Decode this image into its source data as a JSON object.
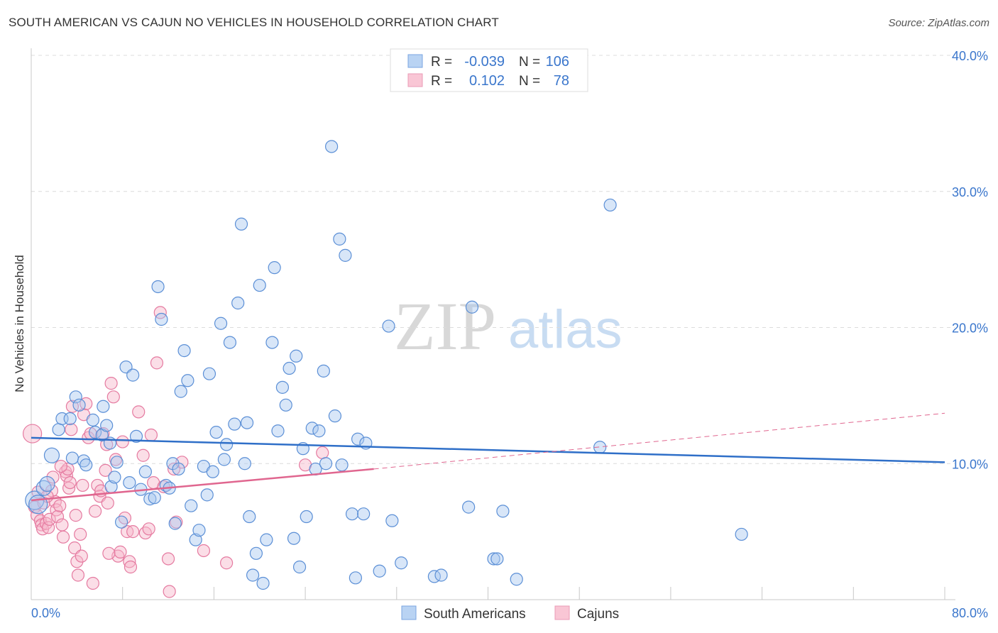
{
  "title": "SOUTH AMERICAN VS CAJUN NO VEHICLES IN HOUSEHOLD CORRELATION CHART",
  "source": "Source: ZipAtlas.com",
  "watermark": {
    "zip": "ZIP",
    "atlas": "atlas"
  },
  "legend_box": {
    "rows": [
      {
        "r_label": "R =",
        "r_value": "-0.039",
        "n_label": "N =",
        "n_value": "106",
        "color": "#a8c8f0"
      },
      {
        "r_label": "R =",
        "r_value": "0.102",
        "n_label": "N =",
        "n_value": "78",
        "color": "#f7b6c9"
      }
    ]
  },
  "colors": {
    "blue": "#5b8fd6",
    "blue_fill": "#a8c8f0",
    "pink": "#e57aa0",
    "pink_fill": "#f7b6c9",
    "trend_blue": "#2f6fc8",
    "trend_pink": "#e0668f",
    "tick_text": "#3a76cc"
  },
  "chart_data": {
    "type": "scatter",
    "title": "SOUTH AMERICAN VS CAJUN NO VEHICLES IN HOUSEHOLD CORRELATION CHART",
    "xlabel": "",
    "ylabel": "No Vehicles in Household",
    "xlim": [
      0,
      80
    ],
    "ylim": [
      0,
      40
    ],
    "x_tick_labels": [
      "0.0%",
      "80.0%"
    ],
    "y_ticks": [
      10,
      20,
      30,
      40
    ],
    "y_tick_labels": [
      "10.0%",
      "20.0%",
      "30.0%",
      "40.0%"
    ],
    "legend": [
      "South Americans",
      "Cajuns"
    ],
    "series": [
      {
        "name": "South Americans",
        "r": -0.039,
        "n": 106,
        "trend": {
          "x": [
            0,
            80
          ],
          "y": [
            11.9,
            10.1
          ]
        },
        "points": [
          {
            "x": 0.3,
            "y": 7.3,
            "s": 2
          },
          {
            "x": 0.6,
            "y": 7.0,
            "s": 2
          },
          {
            "x": 1.1,
            "y": 8.2,
            "s": 1
          },
          {
            "x": 1.4,
            "y": 8.5,
            "s": 1
          },
          {
            "x": 1.8,
            "y": 10.6,
            "s": 1
          },
          {
            "x": 2.4,
            "y": 12.5
          },
          {
            "x": 2.7,
            "y": 13.3
          },
          {
            "x": 3.4,
            "y": 13.3
          },
          {
            "x": 3.6,
            "y": 10.4
          },
          {
            "x": 3.9,
            "y": 14.9
          },
          {
            "x": 4.2,
            "y": 14.3
          },
          {
            "x": 4.6,
            "y": 10.2
          },
          {
            "x": 4.8,
            "y": 9.9
          },
          {
            "x": 5.4,
            "y": 13.2
          },
          {
            "x": 5.6,
            "y": 12.3
          },
          {
            "x": 6.2,
            "y": 12.1
          },
          {
            "x": 6.3,
            "y": 14.2
          },
          {
            "x": 6.6,
            "y": 12.8
          },
          {
            "x": 6.9,
            "y": 11.5
          },
          {
            "x": 7.0,
            "y": 8.3
          },
          {
            "x": 7.3,
            "y": 9.0
          },
          {
            "x": 7.5,
            "y": 10.1
          },
          {
            "x": 7.9,
            "y": 5.7
          },
          {
            "x": 8.3,
            "y": 17.1
          },
          {
            "x": 8.6,
            "y": 8.6
          },
          {
            "x": 8.9,
            "y": 16.5
          },
          {
            "x": 9.2,
            "y": 12.0
          },
          {
            "x": 9.6,
            "y": 8.1
          },
          {
            "x": 10.0,
            "y": 9.4
          },
          {
            "x": 10.4,
            "y": 7.4
          },
          {
            "x": 10.8,
            "y": 7.5
          },
          {
            "x": 11.1,
            "y": 23.0
          },
          {
            "x": 11.4,
            "y": 20.6
          },
          {
            "x": 11.8,
            "y": 8.4
          },
          {
            "x": 12.1,
            "y": 8.2
          },
          {
            "x": 12.4,
            "y": 10.0
          },
          {
            "x": 12.6,
            "y": 5.6
          },
          {
            "x": 12.9,
            "y": 9.6
          },
          {
            "x": 13.1,
            "y": 15.3
          },
          {
            "x": 13.4,
            "y": 18.3
          },
          {
            "x": 13.7,
            "y": 16.1
          },
          {
            "x": 14.0,
            "y": 6.9
          },
          {
            "x": 14.4,
            "y": 4.4
          },
          {
            "x": 14.7,
            "y": 5.1
          },
          {
            "x": 15.1,
            "y": 9.8
          },
          {
            "x": 15.4,
            "y": 7.7
          },
          {
            "x": 15.6,
            "y": 16.6
          },
          {
            "x": 15.9,
            "y": 9.4
          },
          {
            "x": 16.2,
            "y": 12.3
          },
          {
            "x": 16.6,
            "y": 20.3
          },
          {
            "x": 16.9,
            "y": 10.3
          },
          {
            "x": 17.1,
            "y": 11.4
          },
          {
            "x": 17.4,
            "y": 18.9
          },
          {
            "x": 17.8,
            "y": 12.9
          },
          {
            "x": 18.1,
            "y": 21.8
          },
          {
            "x": 18.4,
            "y": 27.6
          },
          {
            "x": 18.7,
            "y": 10.0
          },
          {
            "x": 18.9,
            "y": 13.0
          },
          {
            "x": 19.1,
            "y": 6.1
          },
          {
            "x": 19.4,
            "y": 1.8
          },
          {
            "x": 19.7,
            "y": 3.4
          },
          {
            "x": 20.0,
            "y": 23.1
          },
          {
            "x": 20.3,
            "y": 1.2
          },
          {
            "x": 20.6,
            "y": 4.4
          },
          {
            "x": 21.1,
            "y": 18.9
          },
          {
            "x": 21.3,
            "y": 24.4
          },
          {
            "x": 21.6,
            "y": 12.4
          },
          {
            "x": 22.0,
            "y": 15.6
          },
          {
            "x": 22.3,
            "y": 14.3
          },
          {
            "x": 22.6,
            "y": 17.0
          },
          {
            "x": 23.0,
            "y": 4.5
          },
          {
            "x": 23.2,
            "y": 17.9
          },
          {
            "x": 23.5,
            "y": 2.4
          },
          {
            "x": 23.8,
            "y": 11.1
          },
          {
            "x": 24.1,
            "y": 6.1
          },
          {
            "x": 24.6,
            "y": 12.6
          },
          {
            "x": 24.9,
            "y": 9.6
          },
          {
            "x": 25.2,
            "y": 12.4
          },
          {
            "x": 25.6,
            "y": 16.8
          },
          {
            "x": 25.8,
            "y": 10.0
          },
          {
            "x": 26.6,
            "y": 13.5
          },
          {
            "x": 27.0,
            "y": 26.5
          },
          {
            "x": 27.2,
            "y": 9.9
          },
          {
            "x": 27.5,
            "y": 25.3
          },
          {
            "x": 26.3,
            "y": 33.3
          },
          {
            "x": 28.1,
            "y": 6.3
          },
          {
            "x": 28.4,
            "y": 1.6
          },
          {
            "x": 28.6,
            "y": 11.8
          },
          {
            "x": 29.1,
            "y": 6.3
          },
          {
            "x": 29.3,
            "y": 11.5
          },
          {
            "x": 30.5,
            "y": 2.1
          },
          {
            "x": 31.3,
            "y": 20.1
          },
          {
            "x": 31.6,
            "y": 5.8
          },
          {
            "x": 32.4,
            "y": 2.7
          },
          {
            "x": 35.3,
            "y": 1.7
          },
          {
            "x": 35.9,
            "y": 1.8
          },
          {
            "x": 38.3,
            "y": 6.8
          },
          {
            "x": 38.6,
            "y": 21.5
          },
          {
            "x": 40.5,
            "y": 3.0
          },
          {
            "x": 40.8,
            "y": 3.0
          },
          {
            "x": 41.3,
            "y": 6.5
          },
          {
            "x": 42.5,
            "y": 1.5
          },
          {
            "x": 49.8,
            "y": 11.2
          },
          {
            "x": 50.7,
            "y": 29.0
          },
          {
            "x": 62.2,
            "y": 4.8
          }
        ]
      },
      {
        "name": "Cajuns",
        "r": 0.102,
        "n": 78,
        "trend": {
          "x": [
            0,
            30
          ],
          "y": [
            7.3,
            9.6
          ]
        },
        "trend_extension": {
          "x": [
            30,
            80
          ],
          "y": [
            9.6,
            13.7
          ]
        },
        "points": [
          {
            "x": 0.1,
            "y": 12.2,
            "s": 2
          },
          {
            "x": 0.3,
            "y": 6.8
          },
          {
            "x": 0.5,
            "y": 6.2
          },
          {
            "x": 0.6,
            "y": 7.9
          },
          {
            "x": 0.8,
            "y": 5.8
          },
          {
            "x": 0.9,
            "y": 5.5
          },
          {
            "x": 1.0,
            "y": 5.2
          },
          {
            "x": 1.1,
            "y": 7.1
          },
          {
            "x": 1.3,
            "y": 5.6
          },
          {
            "x": 1.5,
            "y": 5.3
          },
          {
            "x": 1.6,
            "y": 5.9
          },
          {
            "x": 1.8,
            "y": 8.0
          },
          {
            "x": 1.9,
            "y": 9.0
          },
          {
            "x": 2.1,
            "y": 7.2
          },
          {
            "x": 2.2,
            "y": 6.6
          },
          {
            "x": 2.3,
            "y": 6.1
          },
          {
            "x": 2.5,
            "y": 6.9
          },
          {
            "x": 2.7,
            "y": 5.5
          },
          {
            "x": 2.8,
            "y": 4.6
          },
          {
            "x": 3.0,
            "y": 9.4
          },
          {
            "x": 3.1,
            "y": 9.1
          },
          {
            "x": 3.2,
            "y": 9.6
          },
          {
            "x": 3.3,
            "y": 8.2
          },
          {
            "x": 3.4,
            "y": 8.6
          },
          {
            "x": 3.5,
            "y": 12.5
          },
          {
            "x": 3.6,
            "y": 14.2
          },
          {
            "x": 3.8,
            "y": 3.8
          },
          {
            "x": 3.9,
            "y": 6.2
          },
          {
            "x": 4.0,
            "y": 2.8
          },
          {
            "x": 4.1,
            "y": 1.8
          },
          {
            "x": 4.3,
            "y": 4.8
          },
          {
            "x": 4.4,
            "y": 3.2
          },
          {
            "x": 4.5,
            "y": 8.4
          },
          {
            "x": 4.6,
            "y": 13.6
          },
          {
            "x": 4.8,
            "y": 14.4
          },
          {
            "x": 5.0,
            "y": 11.9
          },
          {
            "x": 5.2,
            "y": 12.2
          },
          {
            "x": 5.4,
            "y": 1.2
          },
          {
            "x": 5.6,
            "y": 6.5
          },
          {
            "x": 5.8,
            "y": 8.4
          },
          {
            "x": 6.0,
            "y": 7.6
          },
          {
            "x": 6.1,
            "y": 8.0
          },
          {
            "x": 6.3,
            "y": 12.2
          },
          {
            "x": 6.5,
            "y": 9.5
          },
          {
            "x": 6.6,
            "y": 11.4
          },
          {
            "x": 6.7,
            "y": 7.1
          },
          {
            "x": 7.0,
            "y": 15.9
          },
          {
            "x": 7.2,
            "y": 14.9
          },
          {
            "x": 7.4,
            "y": 10.3
          },
          {
            "x": 7.6,
            "y": 3.2
          },
          {
            "x": 7.8,
            "y": 3.5
          },
          {
            "x": 8.0,
            "y": 11.6
          },
          {
            "x": 8.2,
            "y": 6.0
          },
          {
            "x": 8.4,
            "y": 5.0
          },
          {
            "x": 8.6,
            "y": 2.8
          },
          {
            "x": 8.7,
            "y": 2.4
          },
          {
            "x": 8.9,
            "y": 5.0
          },
          {
            "x": 9.4,
            "y": 13.8
          },
          {
            "x": 9.8,
            "y": 10.6
          },
          {
            "x": 10.0,
            "y": 4.9
          },
          {
            "x": 10.3,
            "y": 5.2
          },
          {
            "x": 10.5,
            "y": 12.1
          },
          {
            "x": 10.7,
            "y": 8.6
          },
          {
            "x": 11.0,
            "y": 17.4
          },
          {
            "x": 11.3,
            "y": 21.1
          },
          {
            "x": 11.6,
            "y": 8.3
          },
          {
            "x": 12.0,
            "y": 3.0
          },
          {
            "x": 12.1,
            "y": 0.6
          },
          {
            "x": 12.5,
            "y": 9.6
          },
          {
            "x": 12.7,
            "y": 5.7
          },
          {
            "x": 13.2,
            "y": 10.1
          },
          {
            "x": 15.1,
            "y": 3.6
          },
          {
            "x": 17.1,
            "y": 2.7
          },
          {
            "x": 24.0,
            "y": 9.9
          },
          {
            "x": 25.5,
            "y": 10.8
          },
          {
            "x": 6.8,
            "y": 3.4
          },
          {
            "x": 2.6,
            "y": 9.8
          },
          {
            "x": 1.4,
            "y": 7.6
          }
        ]
      }
    ]
  }
}
